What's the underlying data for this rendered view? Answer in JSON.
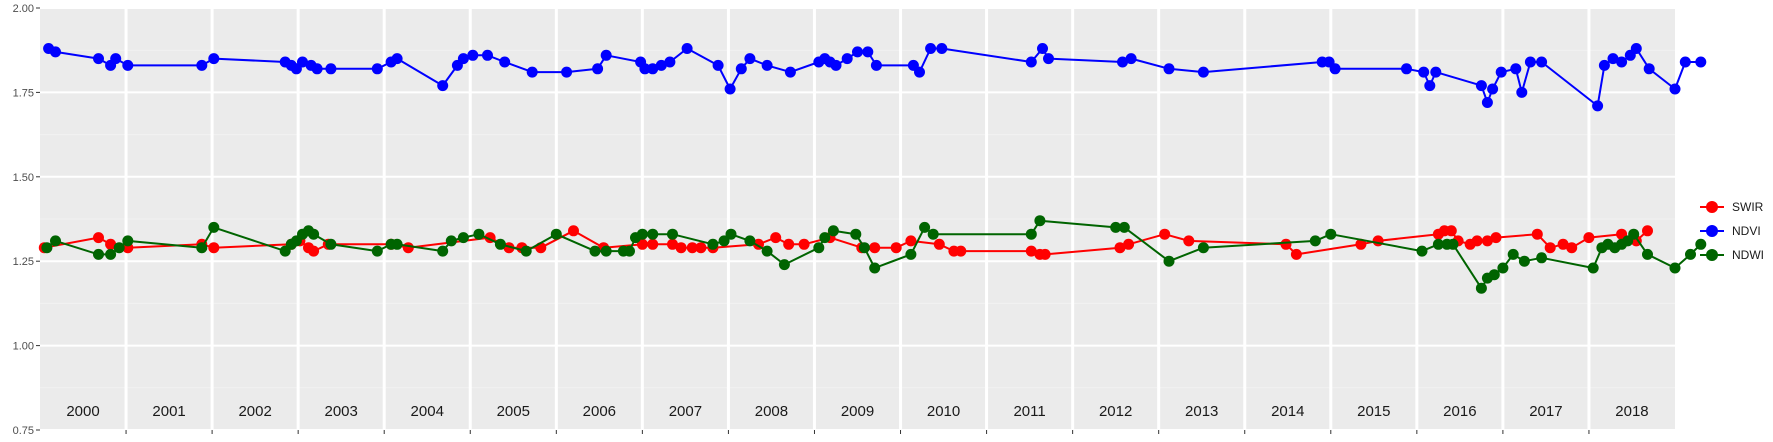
{
  "chart_data": {
    "type": "line",
    "title": "",
    "xlabel": "",
    "ylabel": "",
    "ylim": [
      0.75,
      2.0
    ],
    "yticks": [
      "0.75",
      "1.00",
      "1.25",
      "1.50",
      "1.75",
      "2.00"
    ],
    "xlim": [
      2000.0,
      2019.0
    ],
    "year_labels": [
      "2000",
      "2001",
      "2002",
      "2003",
      "2004",
      "2005",
      "2006",
      "2007",
      "2008",
      "2009",
      "2010",
      "2011",
      "2012",
      "2013",
      "2014",
      "2015",
      "2016",
      "2017",
      "2018"
    ],
    "grid": true,
    "legend_position": "right",
    "series": [
      {
        "name": "SWIR",
        "color": "#ff0000",
        "points": [
          [
            2000.05,
            1.29
          ],
          [
            2000.68,
            1.32
          ],
          [
            2000.82,
            1.3
          ],
          [
            2001.02,
            1.29
          ],
          [
            2001.88,
            1.3
          ],
          [
            2002.02,
            1.29
          ],
          [
            2002.92,
            1.3
          ],
          [
            2003.02,
            1.31
          ],
          [
            2003.12,
            1.29
          ],
          [
            2003.18,
            1.28
          ],
          [
            2003.35,
            1.3
          ],
          [
            2004.08,
            1.3
          ],
          [
            2004.28,
            1.29
          ],
          [
            2005.23,
            1.32
          ],
          [
            2005.45,
            1.29
          ],
          [
            2005.6,
            1.29
          ],
          [
            2005.82,
            1.29
          ],
          [
            2006.2,
            1.34
          ],
          [
            2006.55,
            1.29
          ],
          [
            2007.0,
            1.3
          ],
          [
            2007.12,
            1.3
          ],
          [
            2007.35,
            1.3
          ],
          [
            2007.45,
            1.29
          ],
          [
            2007.58,
            1.29
          ],
          [
            2007.68,
            1.29
          ],
          [
            2007.82,
            1.29
          ],
          [
            2008.35,
            1.3
          ],
          [
            2008.55,
            1.32
          ],
          [
            2008.7,
            1.3
          ],
          [
            2008.88,
            1.3
          ],
          [
            2009.18,
            1.32
          ],
          [
            2009.55,
            1.29
          ],
          [
            2009.7,
            1.29
          ],
          [
            2009.95,
            1.29
          ],
          [
            2010.12,
            1.31
          ],
          [
            2010.45,
            1.3
          ],
          [
            2010.62,
            1.28
          ],
          [
            2010.7,
            1.28
          ],
          [
            2011.52,
            1.28
          ],
          [
            2011.62,
            1.27
          ],
          [
            2011.68,
            1.27
          ],
          [
            2012.55,
            1.29
          ],
          [
            2012.65,
            1.3
          ],
          [
            2013.07,
            1.33
          ],
          [
            2013.35,
            1.31
          ],
          [
            2014.48,
            1.3
          ],
          [
            2014.6,
            1.27
          ],
          [
            2015.35,
            1.3
          ],
          [
            2015.55,
            1.31
          ],
          [
            2016.25,
            1.33
          ],
          [
            2016.32,
            1.34
          ],
          [
            2016.4,
            1.34
          ],
          [
            2016.48,
            1.31
          ],
          [
            2016.62,
            1.3
          ],
          [
            2016.7,
            1.31
          ],
          [
            2016.82,
            1.31
          ],
          [
            2016.92,
            1.32
          ],
          [
            2017.4,
            1.33
          ],
          [
            2017.55,
            1.29
          ],
          [
            2017.7,
            1.3
          ],
          [
            2017.8,
            1.29
          ],
          [
            2018.0,
            1.32
          ],
          [
            2018.38,
            1.33
          ],
          [
            2018.55,
            1.31
          ],
          [
            2018.68,
            1.34
          ]
        ]
      },
      {
        "name": "NDVI",
        "color": "#0000ff",
        "points": [
          [
            2000.1,
            1.88
          ],
          [
            2000.18,
            1.87
          ],
          [
            2000.68,
            1.85
          ],
          [
            2000.82,
            1.83
          ],
          [
            2000.88,
            1.85
          ],
          [
            2001.02,
            1.83
          ],
          [
            2001.88,
            1.83
          ],
          [
            2002.02,
            1.85
          ],
          [
            2002.85,
            1.84
          ],
          [
            2002.92,
            1.83
          ],
          [
            2002.98,
            1.82
          ],
          [
            2003.05,
            1.84
          ],
          [
            2003.15,
            1.83
          ],
          [
            2003.22,
            1.82
          ],
          [
            2003.38,
            1.82
          ],
          [
            2003.92,
            1.82
          ],
          [
            2004.08,
            1.84
          ],
          [
            2004.15,
            1.85
          ],
          [
            2004.68,
            1.77
          ],
          [
            2004.85,
            1.83
          ],
          [
            2004.92,
            1.85
          ],
          [
            2005.03,
            1.86
          ],
          [
            2005.2,
            1.86
          ],
          [
            2005.4,
            1.84
          ],
          [
            2005.72,
            1.81
          ],
          [
            2006.12,
            1.81
          ],
          [
            2006.48,
            1.82
          ],
          [
            2006.58,
            1.86
          ],
          [
            2006.98,
            1.84
          ],
          [
            2007.03,
            1.82
          ],
          [
            2007.12,
            1.82
          ],
          [
            2007.22,
            1.83
          ],
          [
            2007.32,
            1.84
          ],
          [
            2007.52,
            1.88
          ],
          [
            2007.88,
            1.83
          ],
          [
            2008.02,
            1.76
          ],
          [
            2008.15,
            1.82
          ],
          [
            2008.25,
            1.85
          ],
          [
            2008.45,
            1.83
          ],
          [
            2008.72,
            1.81
          ],
          [
            2009.05,
            1.84
          ],
          [
            2009.12,
            1.85
          ],
          [
            2009.18,
            1.84
          ],
          [
            2009.25,
            1.83
          ],
          [
            2009.38,
            1.85
          ],
          [
            2009.5,
            1.87
          ],
          [
            2009.62,
            1.87
          ],
          [
            2009.72,
            1.83
          ],
          [
            2010.15,
            1.83
          ],
          [
            2010.22,
            1.81
          ],
          [
            2010.35,
            1.88
          ],
          [
            2010.48,
            1.88
          ],
          [
            2011.52,
            1.84
          ],
          [
            2011.65,
            1.88
          ],
          [
            2011.72,
            1.85
          ],
          [
            2012.58,
            1.84
          ],
          [
            2012.68,
            1.85
          ],
          [
            2013.12,
            1.82
          ],
          [
            2013.52,
            1.81
          ],
          [
            2014.9,
            1.84
          ],
          [
            2014.98,
            1.84
          ],
          [
            2015.05,
            1.82
          ],
          [
            2015.88,
            1.82
          ],
          [
            2016.08,
            1.81
          ],
          [
            2016.15,
            1.77
          ],
          [
            2016.22,
            1.81
          ],
          [
            2016.75,
            1.77
          ],
          [
            2016.82,
            1.72
          ],
          [
            2016.88,
            1.76
          ],
          [
            2016.98,
            1.81
          ],
          [
            2017.15,
            1.82
          ],
          [
            2017.22,
            1.75
          ],
          [
            2017.32,
            1.84
          ],
          [
            2017.45,
            1.84
          ],
          [
            2018.1,
            1.71
          ],
          [
            2018.18,
            1.83
          ],
          [
            2018.28,
            1.85
          ],
          [
            2018.38,
            1.84
          ],
          [
            2018.48,
            1.86
          ],
          [
            2018.55,
            1.88
          ],
          [
            2018.7,
            1.82
          ],
          [
            2019.0,
            1.76
          ],
          [
            2019.12,
            1.84
          ],
          [
            2019.3,
            1.84
          ]
        ]
      },
      {
        "name": "NDWI",
        "color": "#006400",
        "points": [
          [
            2000.08,
            1.29
          ],
          [
            2000.18,
            1.31
          ],
          [
            2000.68,
            1.27
          ],
          [
            2000.82,
            1.27
          ],
          [
            2000.92,
            1.29
          ],
          [
            2001.02,
            1.31
          ],
          [
            2001.88,
            1.29
          ],
          [
            2002.02,
            1.35
          ],
          [
            2002.85,
            1.28
          ],
          [
            2002.92,
            1.3
          ],
          [
            2002.98,
            1.31
          ],
          [
            2003.05,
            1.33
          ],
          [
            2003.12,
            1.34
          ],
          [
            2003.18,
            1.33
          ],
          [
            2003.38,
            1.3
          ],
          [
            2003.92,
            1.28
          ],
          [
            2004.08,
            1.3
          ],
          [
            2004.15,
            1.3
          ],
          [
            2004.68,
            1.28
          ],
          [
            2004.78,
            1.31
          ],
          [
            2004.92,
            1.32
          ],
          [
            2005.1,
            1.33
          ],
          [
            2005.35,
            1.3
          ],
          [
            2005.65,
            1.28
          ],
          [
            2006.0,
            1.33
          ],
          [
            2006.45,
            1.28
          ],
          [
            2006.58,
            1.28
          ],
          [
            2006.78,
            1.28
          ],
          [
            2006.85,
            1.28
          ],
          [
            2006.92,
            1.32
          ],
          [
            2007.0,
            1.33
          ],
          [
            2007.12,
            1.33
          ],
          [
            2007.35,
            1.33
          ],
          [
            2007.82,
            1.3
          ],
          [
            2007.95,
            1.31
          ],
          [
            2008.03,
            1.33
          ],
          [
            2008.25,
            1.31
          ],
          [
            2008.45,
            1.28
          ],
          [
            2008.65,
            1.24
          ],
          [
            2009.05,
            1.29
          ],
          [
            2009.12,
            1.32
          ],
          [
            2009.22,
            1.34
          ],
          [
            2009.48,
            1.33
          ],
          [
            2009.58,
            1.29
          ],
          [
            2009.7,
            1.23
          ],
          [
            2010.12,
            1.27
          ],
          [
            2010.28,
            1.35
          ],
          [
            2010.38,
            1.33
          ],
          [
            2011.52,
            1.33
          ],
          [
            2011.62,
            1.37
          ],
          [
            2012.5,
            1.35
          ],
          [
            2012.6,
            1.35
          ],
          [
            2013.12,
            1.25
          ],
          [
            2013.52,
            1.29
          ],
          [
            2014.82,
            1.31
          ],
          [
            2015.0,
            1.33
          ],
          [
            2016.06,
            1.28
          ],
          [
            2016.25,
            1.3
          ],
          [
            2016.35,
            1.3
          ],
          [
            2016.42,
            1.3
          ],
          [
            2016.75,
            1.17
          ],
          [
            2016.82,
            1.2
          ],
          [
            2016.9,
            1.21
          ],
          [
            2017.0,
            1.23
          ],
          [
            2017.12,
            1.27
          ],
          [
            2017.25,
            1.25
          ],
          [
            2017.45,
            1.26
          ],
          [
            2018.05,
            1.23
          ],
          [
            2018.15,
            1.29
          ],
          [
            2018.22,
            1.3
          ],
          [
            2018.3,
            1.29
          ],
          [
            2018.38,
            1.3
          ],
          [
            2018.45,
            1.31
          ],
          [
            2018.52,
            1.33
          ],
          [
            2018.68,
            1.27
          ],
          [
            2019.0,
            1.23
          ],
          [
            2019.18,
            1.27
          ],
          [
            2019.3,
            1.3
          ]
        ]
      }
    ]
  }
}
